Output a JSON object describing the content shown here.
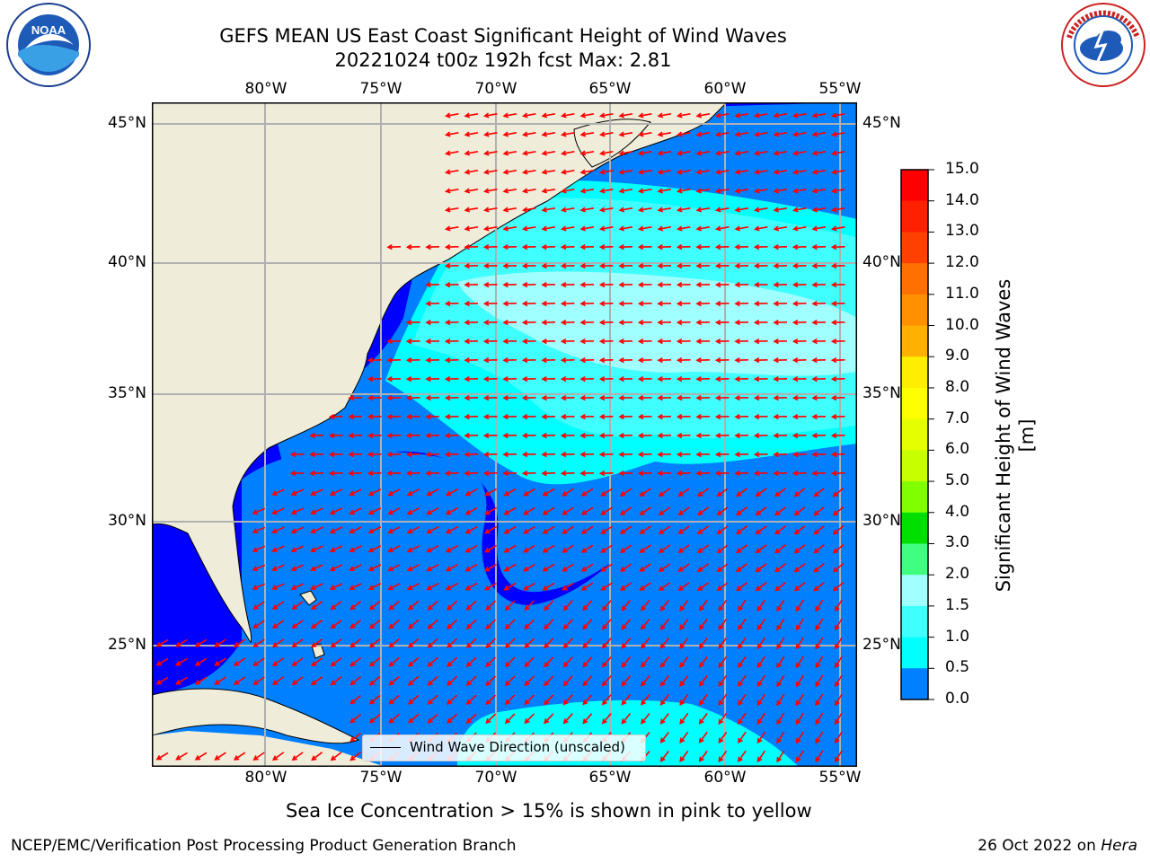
{
  "title": {
    "line1": "GEFS MEAN US East Coast Significant Height of Wind Waves",
    "line2": "20221024 t00z 192h fcst   Max: 2.81"
  },
  "map": {
    "lon_labels_top": [
      "80°W",
      "75°W",
      "70°W",
      "65°W",
      "60°W",
      "55°W"
    ],
    "lon_labels_bottom": [
      "80°W",
      "75°W",
      "70°W",
      "65°W",
      "60°W",
      "55°W"
    ],
    "lat_labels_left": [
      "45°N",
      "40°N",
      "35°N",
      "30°N",
      "25°N"
    ],
    "lat_labels_right": [
      "45°N",
      "40°N",
      "35°N",
      "30°N",
      "25°N"
    ],
    "land_color": "#efedda",
    "ocean_colors": {
      "0.0-0.5": "#0000ff",
      "0.5-1.0": "#0080ff",
      "1.0-1.5": "#00ffff",
      "1.5-2.0": "#40ffff",
      "2.0-3.0": "#a0ffff"
    },
    "arrow_color": "#ff0000",
    "legend_label": "Wind Wave Direction (unscaled)"
  },
  "colorbar": {
    "ticks": [
      "15.0",
      "14.0",
      "13.0",
      "12.0",
      "11.0",
      "10.0",
      "9.0",
      "8.0",
      "7.0",
      "6.0",
      "5.0",
      "4.0",
      "3.0",
      "2.0",
      "1.5",
      "1.0",
      "0.5",
      "0.0"
    ],
    "colors_top_to_bottom": [
      "#ff0000",
      "#ff2000",
      "#ff4000",
      "#ff7000",
      "#ff9000",
      "#ffb000",
      "#ffee00",
      "#ffff00",
      "#e6ff00",
      "#c8ff00",
      "#80ff00",
      "#00e000",
      "#40ff80",
      "#a0ffff",
      "#40ffff",
      "#00ffff",
      "#0080ff",
      "#0000ff"
    ],
    "label": "Significant Height of Wind Waves [m]"
  },
  "ice_note": "Sea Ice Concentration > 15% is shown in pink to yellow",
  "footer": {
    "left": "NCEP/EMC/Verification Post Processing Product Generation Branch",
    "right_prefix": "26 Oct 2022 on ",
    "right_host": "Hera"
  },
  "logos": {
    "left": "noaa-logo",
    "right": "nws-logo"
  }
}
